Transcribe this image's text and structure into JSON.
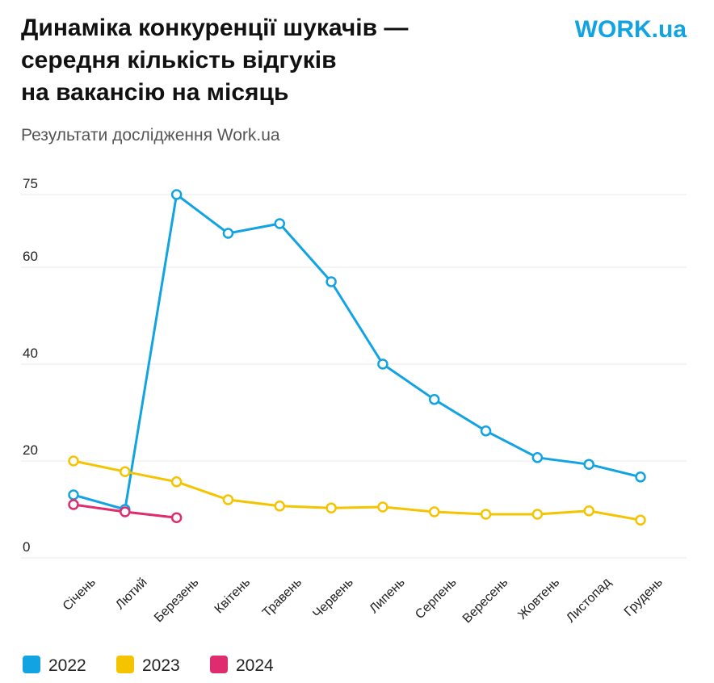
{
  "chart_data": {
    "type": "line",
    "title": [
      "Динаміка конкуренції шукачів —",
      "середня кількість відгуків",
      "на вакансію на місяць"
    ],
    "subtitle": "Результати дослідження Work.ua",
    "logo": "WORK.ua",
    "categories": [
      "Січень",
      "Лютий",
      "Березень",
      "Квітень",
      "Травень",
      "Червень",
      "Липень",
      "Серпень",
      "Вересень",
      "Жовтень",
      "Листопад",
      "Грудень"
    ],
    "series": [
      {
        "name": "2022",
        "color": "#12a3e3",
        "values": [
          13,
          10,
          75,
          67,
          69,
          57,
          40,
          32.7,
          26.2,
          20.7,
          19.3,
          16.7
        ]
      },
      {
        "name": "2023",
        "color": "#f5c400",
        "values": [
          20,
          17.8,
          15.7,
          12,
          10.7,
          10.3,
          10.5,
          9.5,
          9,
          9,
          9.7,
          7.8
        ]
      },
      {
        "name": "2024",
        "color": "#df2c6e",
        "values": [
          11,
          9.5,
          8.3,
          null,
          null,
          null,
          null,
          null,
          null,
          null,
          null,
          null
        ]
      }
    ],
    "ylim": [
      0,
      75
    ],
    "yticks": [
      0,
      20,
      40,
      60,
      75
    ],
    "grid": true,
    "legend": "bottom-left"
  }
}
